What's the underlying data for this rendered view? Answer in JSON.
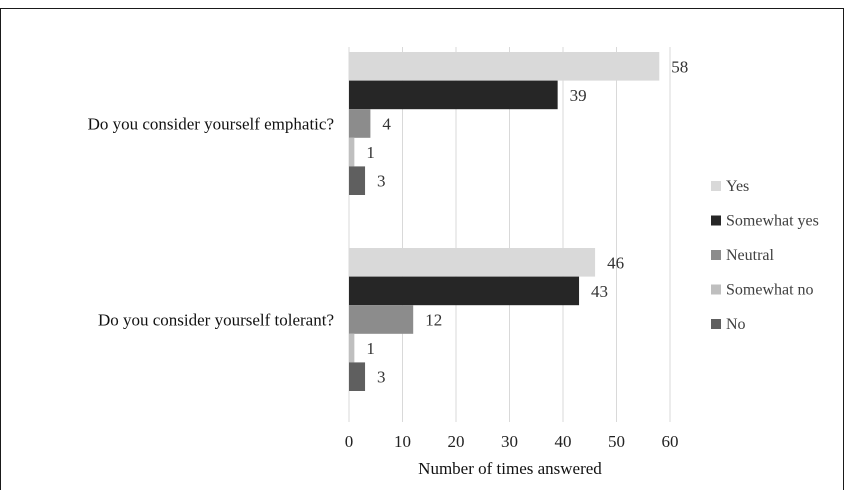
{
  "chart_data": {
    "type": "bar",
    "orientation": "horizontal",
    "categories": [
      "Do you consider yourself emphatic?",
      "Do you consider yourself tolerant?"
    ],
    "series": [
      {
        "name": "Yes",
        "values": [
          58,
          46
        ],
        "color": "#d9d9d9"
      },
      {
        "name": "Somewhat yes",
        "values": [
          39,
          43
        ],
        "color": "#262626"
      },
      {
        "name": "Neutral",
        "values": [
          4,
          12
        ],
        "color": "#8c8c8c"
      },
      {
        "name": "Somewhat no",
        "values": [
          1,
          1
        ],
        "color": "#bfbfbf"
      },
      {
        "name": "No",
        "values": [
          3,
          3
        ],
        "color": "#5f5f5f"
      }
    ],
    "xlabel": "Number of times answered",
    "ylabel": "",
    "xlim": [
      0,
      60
    ],
    "xticks": [
      0,
      10,
      20,
      30,
      40,
      50,
      60
    ],
    "grid": true,
    "legend_position": "right"
  }
}
